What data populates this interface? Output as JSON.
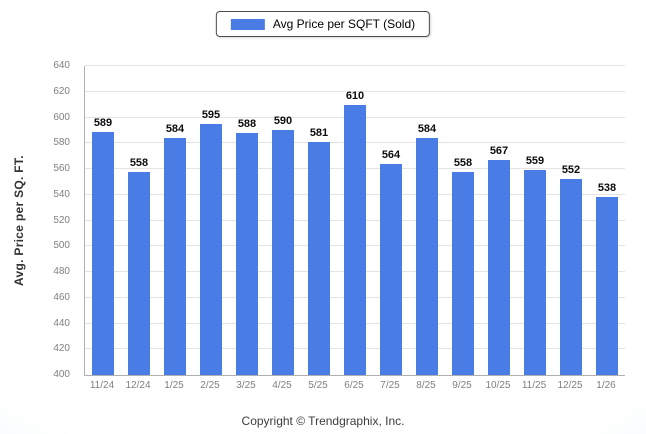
{
  "footer": {
    "copyright": "Copyright © Trendgraphix, Inc."
  },
  "chart_data": {
    "type": "bar",
    "title": "",
    "legend": "Avg Price per SQFT (Sold)",
    "legend_position": "top-center",
    "xlabel": "",
    "ylabel": "Avg. Price per SQ. FT.",
    "ylim": [
      400,
      640
    ],
    "ytick_step": 20,
    "grid": true,
    "bar_color": "#4a7ce6",
    "categories": [
      "11/24",
      "12/24",
      "1/25",
      "2/25",
      "3/25",
      "4/25",
      "5/25",
      "6/25",
      "7/25",
      "8/25",
      "9/25",
      "10/25",
      "11/25",
      "12/25",
      "1/26"
    ],
    "values": [
      589,
      558,
      584,
      595,
      588,
      590,
      581,
      610,
      564,
      584,
      558,
      567,
      559,
      552,
      538
    ]
  }
}
